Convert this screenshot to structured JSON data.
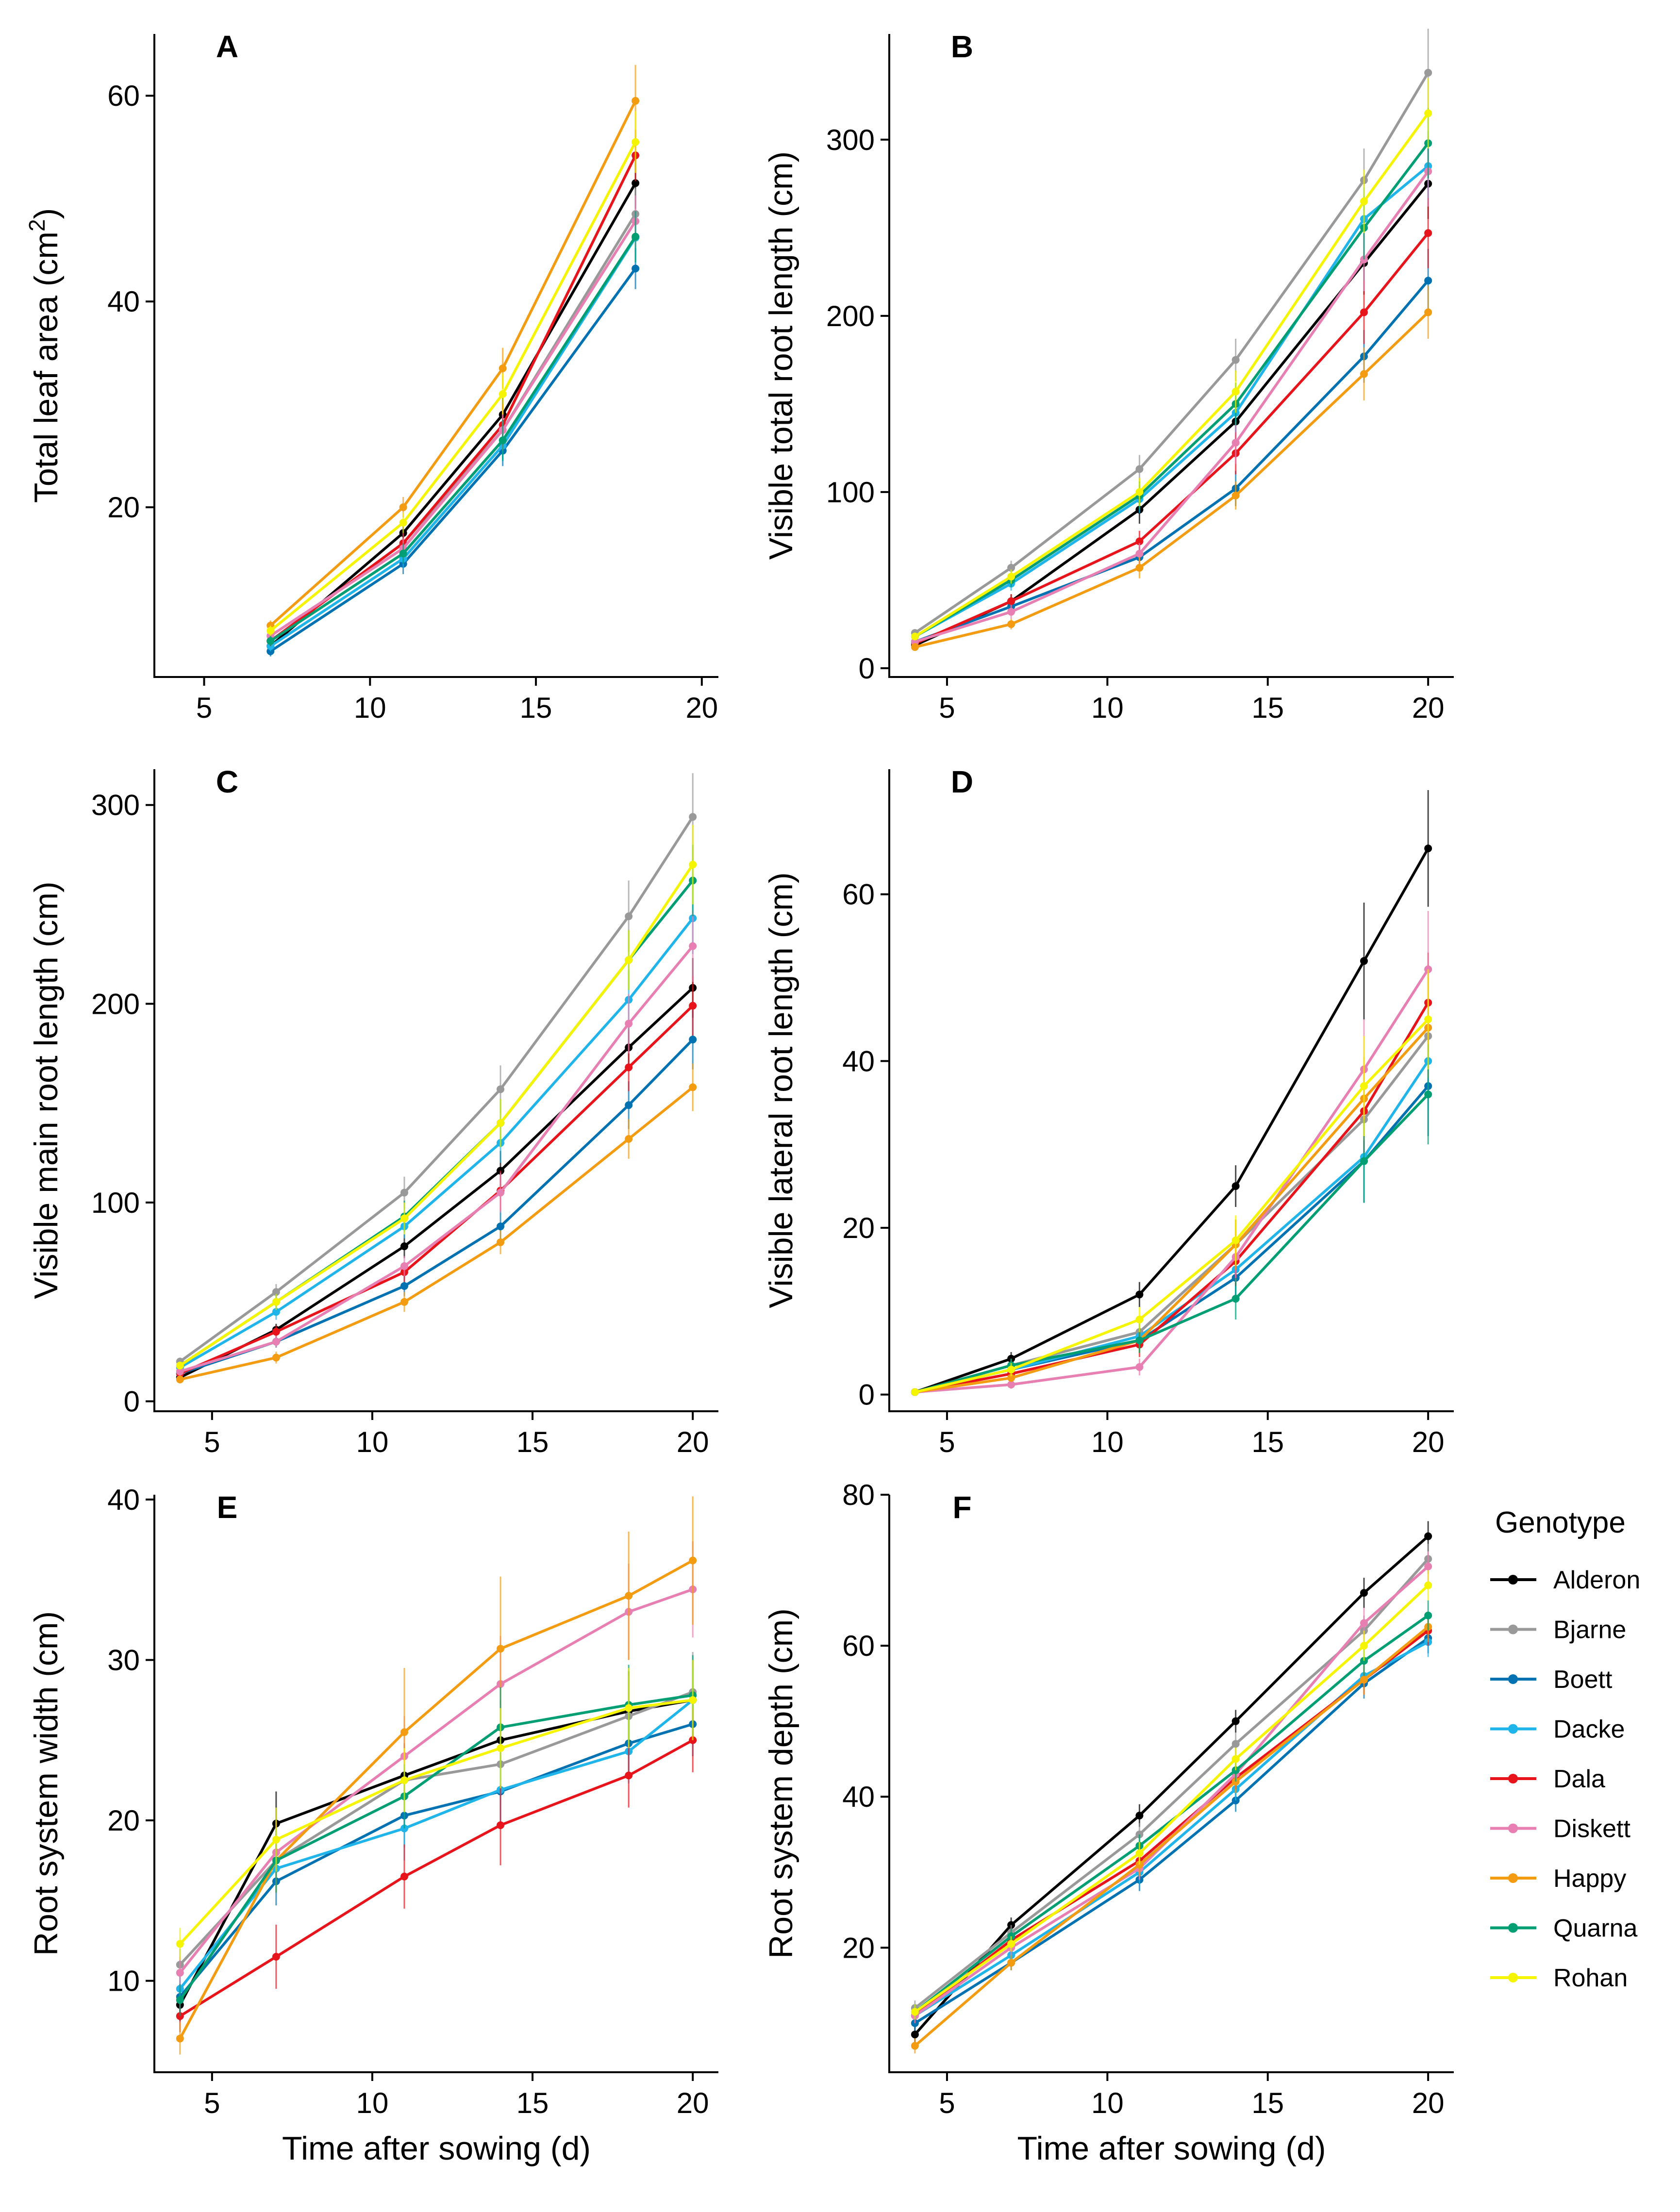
{
  "figure": {
    "x_axis_title": "Time after sowing (d)",
    "legend_title": "Genotype"
  },
  "genotypes": [
    {
      "name": "Alderon",
      "color": "#000000"
    },
    {
      "name": "Bjarne",
      "color": "#999999"
    },
    {
      "name": "Boett",
      "color": "#0072B2"
    },
    {
      "name": "Dacke",
      "color": "#1FB4EA"
    },
    {
      "name": "Dala",
      "color": "#E8141C"
    },
    {
      "name": "Diskett",
      "color": "#E77FB2"
    },
    {
      "name": "Happy",
      "color": "#F39C12"
    },
    {
      "name": "Quarna",
      "color": "#009E73"
    },
    {
      "name": "Rohan",
      "color": "#F5F500"
    }
  ],
  "chart_data": [
    {
      "panel": "A",
      "type": "line",
      "title": "A",
      "ylabel": "Total leaf area (cm²)",
      "ylabel_parts": [
        "Total leaf area (cm",
        "2",
        ")"
      ],
      "xlabel": "",
      "xlim": [
        3.5,
        20.5
      ],
      "ylim": [
        3.5,
        66
      ],
      "xticks": [
        5,
        10,
        15,
        20
      ],
      "yticks": [
        20,
        40,
        60
      ],
      "x": [
        7,
        11,
        14,
        18
      ],
      "series": [
        {
          "name": "Alderon",
          "values": [
            6.5,
            17.5,
            29,
            51.5
          ],
          "err": [
            0.5,
            1,
            2,
            2.5
          ]
        },
        {
          "name": "Bjarne",
          "values": [
            7,
            16.5,
            27.5,
            48.5
          ],
          "err": [
            0.5,
            1,
            2,
            2.5
          ]
        },
        {
          "name": "Boett",
          "values": [
            6,
            14.5,
            25.5,
            43.2
          ],
          "err": [
            0.5,
            1,
            1.5,
            2
          ]
        },
        {
          "name": "Dacke",
          "values": [
            6.5,
            15,
            26,
            46.2
          ],
          "err": [
            0.5,
            1,
            1.5,
            2.5
          ]
        },
        {
          "name": "Dala",
          "values": [
            7,
            16.5,
            28,
            54.2
          ],
          "err": [
            0.5,
            1,
            2,
            2.5
          ]
        },
        {
          "name": "Diskett",
          "values": [
            7.5,
            16,
            27.5,
            47.8
          ],
          "err": [
            0.5,
            1,
            2,
            2.5
          ]
        },
        {
          "name": "Happy",
          "values": [
            8.5,
            20,
            33.5,
            59.5
          ],
          "err": [
            0.5,
            1,
            2,
            3.5
          ]
        },
        {
          "name": "Quarna",
          "values": [
            7,
            15.5,
            26.5,
            46.3
          ],
          "err": [
            0.5,
            1,
            2,
            2.5
          ]
        },
        {
          "name": "Rohan",
          "values": [
            8,
            18.5,
            31,
            55.5
          ],
          "err": [
            0.5,
            1,
            2,
            3
          ]
        }
      ]
    },
    {
      "panel": "B",
      "type": "line",
      "title": "B",
      "ylabel": "Visible total root length (cm)",
      "xlabel": "",
      "xlim": [
        3.2,
        20.8
      ],
      "ylim": [
        -5,
        360
      ],
      "xticks": [
        5,
        10,
        15,
        20
      ],
      "yticks": [
        0,
        100,
        200,
        300
      ],
      "x": [
        4,
        7,
        11,
        14,
        18,
        20
      ],
      "series": [
        {
          "name": "Alderon",
          "values": [
            13,
            38,
            90,
            140,
            230,
            275
          ],
          "err": [
            2,
            4,
            8,
            12,
            18,
            20
          ]
        },
        {
          "name": "Bjarne",
          "values": [
            20,
            57,
            113,
            175,
            277,
            338
          ],
          "err": [
            2,
            4,
            8,
            12,
            18,
            25
          ]
        },
        {
          "name": "Boett",
          "values": [
            15,
            35,
            63,
            102,
            177,
            220
          ],
          "err": [
            2,
            3,
            6,
            10,
            15,
            18
          ]
        },
        {
          "name": "Dacke",
          "values": [
            18,
            48,
            96,
            145,
            255,
            285
          ],
          "err": [
            2,
            4,
            8,
            12,
            18,
            20
          ]
        },
        {
          "name": "Dala",
          "values": [
            14,
            38,
            72,
            122,
            202,
            247
          ],
          "err": [
            2,
            4,
            6,
            12,
            18,
            20
          ]
        },
        {
          "name": "Diskett",
          "values": [
            15,
            32,
            65,
            128,
            232,
            282
          ],
          "err": [
            2,
            4,
            6,
            12,
            18,
            20
          ]
        },
        {
          "name": "Happy",
          "values": [
            12,
            25,
            57,
            98,
            167,
            202
          ],
          "err": [
            2,
            3,
            6,
            8,
            15,
            15
          ]
        },
        {
          "name": "Quarna",
          "values": [
            18,
            50,
            98,
            150,
            250,
            298
          ],
          "err": [
            2,
            4,
            8,
            12,
            18,
            20
          ]
        },
        {
          "name": "Rohan",
          "values": [
            18,
            52,
            100,
            157,
            265,
            315
          ],
          "err": [
            2,
            4,
            8,
            12,
            18,
            20
          ]
        }
      ]
    },
    {
      "panel": "C",
      "type": "line",
      "title": "C",
      "ylabel": "Visible main root length (cm)",
      "xlabel": "",
      "xlim": [
        3.2,
        20.8
      ],
      "ylim": [
        -5,
        318
      ],
      "xticks": [
        5,
        10,
        15,
        20
      ],
      "yticks": [
        0,
        100,
        200,
        300
      ],
      "x": [
        4,
        7,
        11,
        14,
        18,
        20
      ],
      "series": [
        {
          "name": "Alderon",
          "values": [
            12,
            36,
            78,
            116,
            178,
            208
          ],
          "err": [
            2,
            3,
            6,
            10,
            12,
            15
          ]
        },
        {
          "name": "Bjarne",
          "values": [
            20,
            55,
            105,
            157,
            244,
            294
          ],
          "err": [
            2,
            4,
            8,
            12,
            18,
            22
          ]
        },
        {
          "name": "Boett",
          "values": [
            14,
            30,
            58,
            88,
            149,
            182
          ],
          "err": [
            2,
            3,
            5,
            8,
            12,
            15
          ]
        },
        {
          "name": "Dacke",
          "values": [
            17,
            45,
            88,
            130,
            202,
            243
          ],
          "err": [
            2,
            4,
            6,
            10,
            15,
            18
          ]
        },
        {
          "name": "Dala",
          "values": [
            14,
            35,
            65,
            106,
            168,
            199
          ],
          "err": [
            2,
            3,
            5,
            10,
            12,
            15
          ]
        },
        {
          "name": "Diskett",
          "values": [
            15,
            30,
            68,
            105,
            190,
            229
          ],
          "err": [
            2,
            3,
            5,
            10,
            15,
            18
          ]
        },
        {
          "name": "Happy",
          "values": [
            11,
            22,
            50,
            80,
            132,
            158
          ],
          "err": [
            2,
            3,
            5,
            6,
            10,
            12
          ]
        },
        {
          "name": "Quarna",
          "values": [
            18,
            50,
            93,
            140,
            222,
            262
          ],
          "err": [
            2,
            4,
            8,
            12,
            15,
            18
          ]
        },
        {
          "name": "Rohan",
          "values": [
            18,
            50,
            92,
            140,
            222,
            270
          ],
          "err": [
            2,
            4,
            8,
            12,
            15,
            20
          ]
        }
      ]
    },
    {
      "panel": "D",
      "type": "line",
      "title": "D",
      "ylabel": "Visible lateral root length (cm)",
      "xlabel": "",
      "xlim": [
        3.2,
        20.8
      ],
      "ylim": [
        -2,
        75
      ],
      "xticks": [
        5,
        10,
        15,
        20
      ],
      "yticks": [
        0,
        20,
        40,
        60
      ],
      "x": [
        4,
        7,
        11,
        14,
        18,
        20
      ],
      "series": [
        {
          "name": "Alderon",
          "values": [
            0.3,
            4.3,
            12,
            25,
            52,
            65.5
          ],
          "err": [
            0.2,
            0.8,
            1.5,
            2.5,
            7,
            7
          ]
        },
        {
          "name": "Bjarne",
          "values": [
            0.3,
            3.5,
            7.5,
            18,
            33,
            43
          ],
          "err": [
            0.2,
            0.8,
            1.5,
            3,
            5,
            6
          ]
        },
        {
          "name": "Boett",
          "values": [
            0.3,
            3,
            6.5,
            14,
            28,
            37
          ],
          "err": [
            0.2,
            0.8,
            1.5,
            3,
            5,
            6
          ]
        },
        {
          "name": "Dacke",
          "values": [
            0.3,
            3,
            7,
            15,
            28.5,
            40
          ],
          "err": [
            0.2,
            0.8,
            1.5,
            3,
            5,
            6
          ]
        },
        {
          "name": "Dala",
          "values": [
            0.3,
            2.5,
            6,
            16,
            34,
            47
          ],
          "err": [
            0.2,
            0.8,
            1.5,
            3,
            5,
            6
          ]
        },
        {
          "name": "Diskett",
          "values": [
            0.3,
            1.2,
            3.3,
            16.5,
            39,
            51
          ],
          "err": [
            0.2,
            0.5,
            1,
            3,
            6,
            7
          ]
        },
        {
          "name": "Happy",
          "values": [
            0.3,
            2,
            6.5,
            18,
            35.5,
            44
          ],
          "err": [
            0.2,
            0.5,
            1.5,
            3,
            5,
            6
          ]
        },
        {
          "name": "Quarna",
          "values": [
            0.3,
            3.5,
            6.5,
            11.5,
            28,
            36
          ],
          "err": [
            0.2,
            0.8,
            1.5,
            2.5,
            5,
            6
          ]
        },
        {
          "name": "Rohan",
          "values": [
            0.3,
            3,
            9,
            18.5,
            37,
            45
          ],
          "err": [
            0.2,
            0.8,
            1.5,
            3,
            6,
            6
          ]
        }
      ]
    },
    {
      "panel": "E",
      "type": "line",
      "title": "E",
      "ylabel": "Root system width (cm)",
      "xlabel": "Time after sowing (d)",
      "xlim": [
        3.2,
        20.8
      ],
      "ylim": [
        4.3,
        40.3
      ],
      "xticks": [
        5,
        10,
        15,
        20
      ],
      "yticks": [
        10,
        20,
        30,
        40
      ],
      "x": [
        4,
        7,
        11,
        14,
        18,
        20
      ],
      "series": [
        {
          "name": "Alderon",
          "values": [
            8.5,
            19.8,
            22.8,
            25,
            26.8,
            27.5
          ],
          "err": [
            1,
            2,
            2,
            2.5,
            2.5,
            2.5
          ]
        },
        {
          "name": "Bjarne",
          "values": [
            11,
            17.5,
            22.5,
            23.5,
            26.5,
            28
          ],
          "err": [
            1,
            2,
            2,
            2.5,
            2.5,
            2.5
          ]
        },
        {
          "name": "Boett",
          "values": [
            9,
            16.2,
            20.3,
            21.8,
            24.8,
            26
          ],
          "err": [
            1,
            1.5,
            2,
            2,
            2,
            2
          ]
        },
        {
          "name": "Dacke",
          "values": [
            9.5,
            17,
            19.5,
            21.9,
            24.3,
            27.5
          ],
          "err": [
            1,
            1.5,
            2,
            2,
            2,
            2
          ]
        },
        {
          "name": "Dala",
          "values": [
            7.8,
            11.5,
            16.5,
            19.7,
            22.8,
            25
          ],
          "err": [
            1,
            2,
            2,
            2.5,
            2,
            2
          ]
        },
        {
          "name": "Diskett",
          "values": [
            10.5,
            18,
            24,
            28.5,
            33,
            34.4
          ],
          "err": [
            1,
            2,
            2.5,
            3,
            3,
            3
          ]
        },
        {
          "name": "Happy",
          "values": [
            6.4,
            17.5,
            25.5,
            30.7,
            34,
            36.2
          ],
          "err": [
            1,
            2,
            4,
            4.5,
            4,
            4
          ]
        },
        {
          "name": "Quarna",
          "values": [
            8.8,
            17.5,
            21.5,
            25.8,
            27.2,
            27.8
          ],
          "err": [
            1,
            2,
            2,
            2.5,
            2.5,
            2.5
          ]
        },
        {
          "name": "Rohan",
          "values": [
            12.3,
            18.8,
            22.5,
            24.5,
            27,
            27.5
          ],
          "err": [
            1,
            2,
            2,
            2.5,
            2.5,
            2.5
          ]
        }
      ]
    },
    {
      "panel": "F",
      "type": "line",
      "title": "F",
      "ylabel": "Root system depth (cm)",
      "xlabel": "Time after sowing (d)",
      "xlim": [
        3.2,
        20.8
      ],
      "ylim": [
        3.5,
        80
      ],
      "xticks": [
        5,
        10,
        15,
        20
      ],
      "yticks": [
        20,
        40,
        60,
        80
      ],
      "x": [
        4,
        7,
        11,
        14,
        18,
        20
      ],
      "series": [
        {
          "name": "Alderon",
          "values": [
            8.5,
            23,
            37.5,
            50,
            67,
            74.5
          ],
          "err": [
            1,
            1,
            1.5,
            1.5,
            2,
            2
          ]
        },
        {
          "name": "Bjarne",
          "values": [
            12,
            22,
            35,
            47,
            62,
            71.5
          ],
          "err": [
            1,
            1,
            1.5,
            1.5,
            2,
            2
          ]
        },
        {
          "name": "Boett",
          "values": [
            10,
            18,
            29,
            39.5,
            55,
            61
          ],
          "err": [
            1,
            1,
            1.5,
            1.5,
            2,
            2
          ]
        },
        {
          "name": "Dacke",
          "values": [
            11,
            19,
            30,
            41,
            56,
            60.5
          ],
          "err": [
            1,
            1,
            1.5,
            1.5,
            2,
            2
          ]
        },
        {
          "name": "Dala",
          "values": [
            11,
            21,
            31.5,
            42.5,
            55.5,
            62
          ],
          "err": [
            1,
            1,
            1.5,
            1.5,
            2,
            2
          ]
        },
        {
          "name": "Diskett",
          "values": [
            11,
            20,
            30.5,
            43,
            63,
            70.5
          ],
          "err": [
            1,
            1,
            1.5,
            1.5,
            2,
            2
          ]
        },
        {
          "name": "Happy",
          "values": [
            7,
            18,
            31,
            42,
            55.5,
            62.5
          ],
          "err": [
            1,
            1,
            1.5,
            1.5,
            2,
            2
          ]
        },
        {
          "name": "Quarna",
          "values": [
            11.5,
            21.5,
            33.5,
            43.5,
            58,
            64
          ],
          "err": [
            1,
            1,
            1.5,
            1.5,
            2,
            2
          ]
        },
        {
          "name": "Rohan",
          "values": [
            11.5,
            20.5,
            32.5,
            45,
            60,
            68
          ],
          "err": [
            1,
            1,
            1.5,
            1.5,
            2,
            2
          ]
        }
      ]
    }
  ]
}
